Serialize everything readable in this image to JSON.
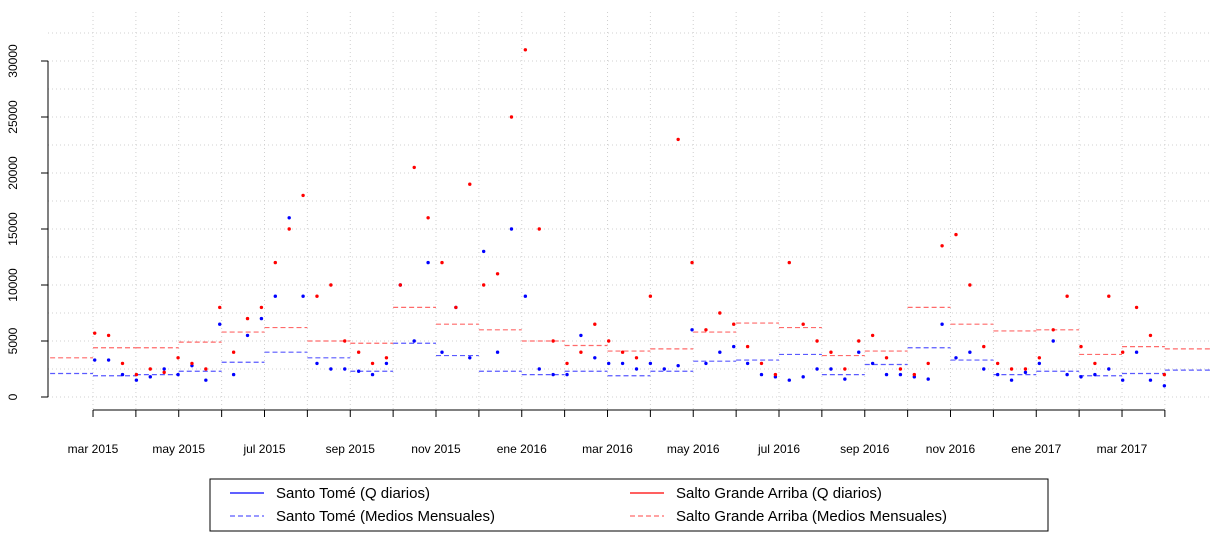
{
  "chart_data": {
    "type": "scatter",
    "x": [
      2015.17,
      2015.197,
      2015.224,
      2015.251,
      2015.278,
      2015.305,
      2015.332,
      2015.359,
      2015.386,
      2015.413,
      2015.44,
      2015.467,
      2015.494,
      2015.521,
      2015.548,
      2015.575,
      2015.602,
      2015.629,
      2015.656,
      2015.683,
      2015.71,
      2015.737,
      2015.764,
      2015.791,
      2015.818,
      2015.845,
      2015.872,
      2015.899,
      2015.926,
      2015.953,
      2015.98,
      2016.007,
      2016.034,
      2016.061,
      2016.088,
      2016.115,
      2016.142,
      2016.169,
      2016.196,
      2016.223,
      2016.25,
      2016.277,
      2016.304,
      2016.331,
      2016.358,
      2016.385,
      2016.412,
      2016.439,
      2016.466,
      2016.493,
      2016.52,
      2016.547,
      2016.574,
      2016.601,
      2016.628,
      2016.655,
      2016.682,
      2016.709,
      2016.736,
      2016.763,
      2016.79,
      2016.817,
      2016.844,
      2016.871,
      2016.898,
      2016.925,
      2016.952,
      2016.979,
      2017.006,
      2017.033,
      2017.06,
      2017.087,
      2017.114,
      2017.141,
      2017.168,
      2017.195,
      2017.222,
      2017.249
    ],
    "months": [
      2015.0833,
      2015.1667,
      2015.25,
      2015.3333,
      2015.4167,
      2015.5,
      2015.5833,
      2015.6667,
      2015.75,
      2015.8333,
      2015.9167,
      2016.0,
      2016.0833,
      2016.1667,
      2016.25,
      2016.3333,
      2016.4167,
      2016.5,
      2016.5833,
      2016.6667,
      2016.75,
      2016.8333,
      2016.9167,
      2017.0,
      2017.0833,
      2017.1667,
      2017.25
    ],
    "series": [
      {
        "name": "Santo Tomé (Q diarios)",
        "color": "#0000ff",
        "style": "points",
        "values": [
          3300,
          3300,
          2000,
          1500,
          1800,
          2500,
          2000,
          2800,
          1500,
          6500,
          2000,
          5500,
          7000,
          9000,
          16000,
          9000,
          3000,
          2500,
          2500,
          2300,
          2000,
          3000,
          10000,
          5000,
          12000,
          4000,
          8000,
          3500,
          13000,
          4000,
          15000,
          9000,
          2500,
          2000,
          2000,
          5500,
          3500,
          3000,
          3000,
          2500,
          3000,
          2500,
          2800,
          6000,
          3000,
          4000,
          4500,
          3000,
          2000,
          1800,
          1500,
          1800,
          2500,
          2500,
          1600,
          4000,
          3000,
          2000,
          2000,
          1800,
          1600,
          6500,
          3500,
          4000,
          2500,
          2000,
          1500,
          2200,
          3000,
          5000,
          2000,
          1800,
          2000,
          2500,
          1500,
          4000,
          1500,
          1000
        ]
      },
      {
        "name": "Santo Tomé (Medios Mensuales)",
        "color": "#5a5aff",
        "style": "dashed-step",
        "values": [
          2100,
          1900,
          2000,
          2300,
          3100,
          4000,
          3500,
          2300,
          4800,
          3700,
          2300,
          2000,
          2300,
          1900,
          2300,
          3200,
          3300,
          3800,
          2000,
          2900,
          4400,
          3300,
          2000,
          2300,
          1900,
          2100,
          2400
        ]
      },
      {
        "name": "Salto Grande Arriba (Q diarios)",
        "color": "#ff0000",
        "style": "points",
        "values": [
          5700,
          5500,
          3000,
          2000,
          2500,
          2200,
          3500,
          3000,
          2500,
          8000,
          4000,
          7000,
          8000,
          12000,
          15000,
          18000,
          9000,
          10000,
          5000,
          4000,
          3000,
          3500,
          10000,
          20500,
          16000,
          12000,
          8000,
          19000,
          10000,
          11000,
          25000,
          31000,
          15000,
          5000,
          3000,
          4000,
          6500,
          5000,
          4000,
          3500,
          9000,
          null,
          23000,
          12000,
          6000,
          7500,
          6500,
          4500,
          3000,
          2000,
          12000,
          6500,
          5000,
          4000,
          2500,
          5000,
          5500,
          3500,
          2500,
          2000,
          3000,
          13500,
          14500,
          10000,
          4500,
          3000,
          2500,
          2500,
          3500,
          6000,
          9000,
          4500,
          3000,
          9000,
          4000,
          8000,
          5500,
          2000
        ]
      },
      {
        "name": "Salto Grande Arriba (Medios Mensuales)",
        "color": "#ff6a6a",
        "style": "dashed-step",
        "values": [
          3500,
          4400,
          4400,
          4900,
          5800,
          6200,
          5000,
          4800,
          8000,
          6500,
          6000,
          5000,
          4600,
          4100,
          4300,
          5800,
          6600,
          6200,
          3700,
          4100,
          8000,
          6500,
          5900,
          6000,
          3800,
          4500,
          4300
        ]
      }
    ],
    "xlim": [
      2015.0792,
      2017.3377
    ],
    "xticks": [
      {
        "value": 2015.1667,
        "label": "mar 2015"
      },
      {
        "value": 2015.3333,
        "label": "may 2015"
      },
      {
        "value": 2015.5,
        "label": "jul 2015"
      },
      {
        "value": 2015.6667,
        "label": "sep 2015"
      },
      {
        "value": 2015.8333,
        "label": "nov 2015"
      },
      {
        "value": 2016.0,
        "label": "ene 2016"
      },
      {
        "value": 2016.1667,
        "label": "mar 2016"
      },
      {
        "value": 2016.3333,
        "label": "may 2016"
      },
      {
        "value": 2016.5,
        "label": "jul 2016"
      },
      {
        "value": 2016.6667,
        "label": "sep 2016"
      },
      {
        "value": 2016.8333,
        "label": "nov 2016"
      },
      {
        "value": 2017.0,
        "label": "ene 2017"
      },
      {
        "value": 2017.1667,
        "label": "mar 2017"
      }
    ],
    "xminor": [
      2015.25,
      2015.4167,
      2015.5833,
      2015.75,
      2015.9167,
      2016.0833,
      2016.25,
      2016.4167,
      2016.5833,
      2016.75,
      2016.9167,
      2017.0833,
      2017.25
    ],
    "ylim": [
      -1160,
      34375
    ],
    "yticks": [
      0,
      5000,
      10000,
      15000,
      20000,
      25000,
      30000
    ],
    "ygrid": [
      0,
      2500,
      5000,
      7500,
      10000,
      12500,
      15000,
      17500,
      20000,
      22500,
      25000,
      27500,
      30000,
      32500
    ],
    "grid": true
  }
}
